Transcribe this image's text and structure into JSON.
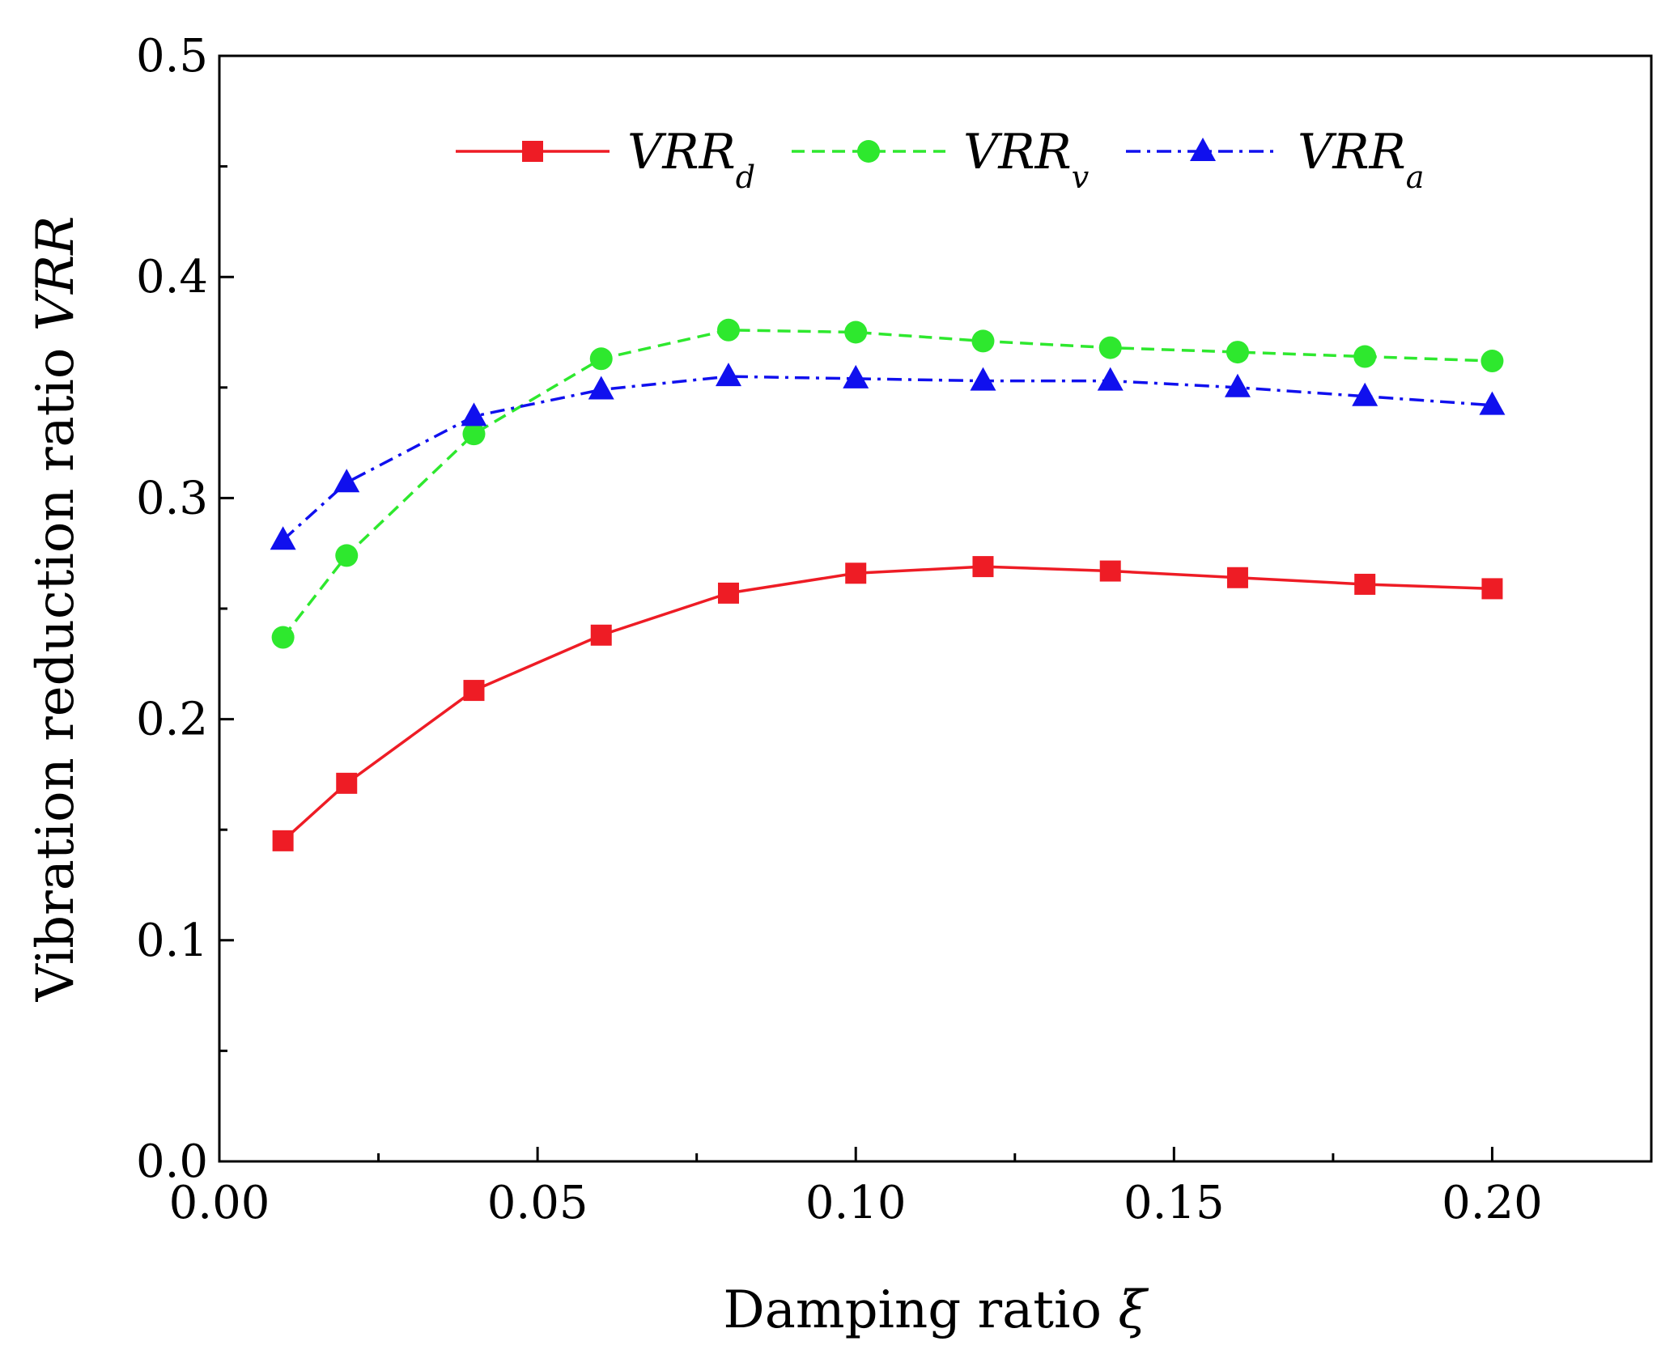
{
  "chart_data": {
    "type": "line",
    "title": "",
    "xlabel": "Damping ratio",
    "xlabel_symbol": "ξ",
    "ylabel": "Vibration reduction ratio",
    "ylabel_symbol": "VRR",
    "xlim": [
      0.0,
      0.225
    ],
    "ylim": [
      0.0,
      0.5
    ],
    "x_ticks": [
      "0.00",
      "0.05",
      "0.10",
      "0.15",
      "0.20"
    ],
    "y_ticks": [
      "0.0",
      "0.1",
      "0.2",
      "0.3",
      "0.4",
      "0.5"
    ],
    "grid": false,
    "legend_position": "top",
    "x": [
      0.01,
      0.02,
      0.04,
      0.06,
      0.08,
      0.1,
      0.12,
      0.14,
      0.16,
      0.18,
      0.2
    ],
    "series": [
      {
        "name": "VRR",
        "subscript": "d",
        "color": "#ee1c25",
        "marker": "square",
        "line_style": "solid",
        "values": [
          0.145,
          0.171,
          0.213,
          0.238,
          0.257,
          0.266,
          0.269,
          0.267,
          0.264,
          0.261,
          0.259
        ]
      },
      {
        "name": "VRR",
        "subscript": "v",
        "color": "#2ee82e",
        "marker": "circle",
        "line_style": "dash",
        "values": [
          0.237,
          0.274,
          0.329,
          0.363,
          0.376,
          0.375,
          0.371,
          0.368,
          0.366,
          0.364,
          0.362
        ]
      },
      {
        "name": "VRR",
        "subscript": "a",
        "color": "#1010ee",
        "marker": "triangle",
        "line_style": "dashdot",
        "values": [
          0.281,
          0.307,
          0.337,
          0.349,
          0.355,
          0.354,
          0.353,
          0.353,
          0.35,
          0.346,
          0.342
        ]
      }
    ]
  }
}
